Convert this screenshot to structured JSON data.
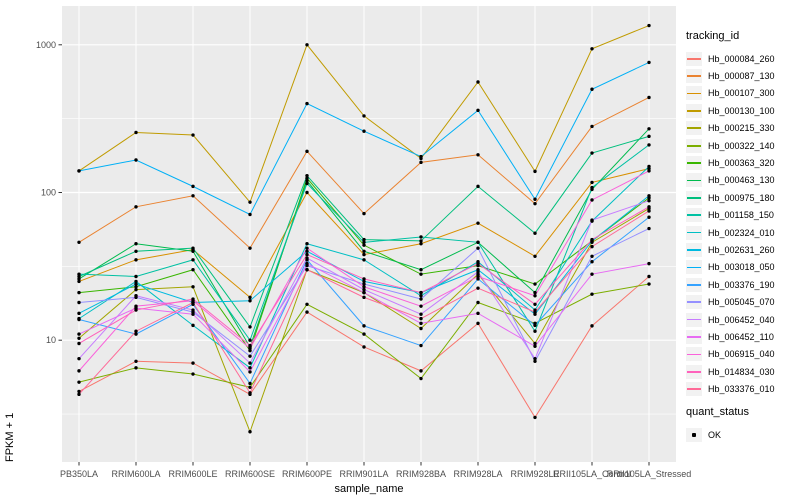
{
  "legend": {
    "tracking_title": "tracking_id",
    "quant_title": "quant_status",
    "quant_items": [
      {
        "label": "OK",
        "marker": "black-point"
      }
    ]
  },
  "colors": {
    "panel_bg": "#EBEBEB",
    "grid": "#FFFFFF",
    "tick": "#333333",
    "tick_label": "#4D4D4D",
    "point": "#000000"
  },
  "chart_data": {
    "type": "line",
    "title": "",
    "xlabel": "sample_name",
    "ylabel": "FPKM + 1",
    "y_scale": "log10",
    "ylim": [
      1.5,
      1800
    ],
    "y_ticks": [
      10,
      100,
      1000
    ],
    "y_tick_labels": [
      "10",
      "100",
      "1000"
    ],
    "y_minor_ticks": [
      3.162,
      31.62,
      316.2
    ],
    "grid": true,
    "legend_position": "right",
    "legend_title": "tracking_id",
    "marker": "black point (quant_status OK)",
    "categories": [
      "PB350LA",
      "RRIM600LA",
      "RRIM600LE",
      "RRIM600SE",
      "RRIM600PE",
      "RRIM901LA",
      "RRIM928BA",
      "RRIM928LA",
      "RRIM928LE",
      "RRII105LA_Control",
      "RRII105LA_Stressed"
    ],
    "series": [
      {
        "name": "Hb_000084_260",
        "color": "#F8766D",
        "values": [
          4.5,
          7.2,
          7.0,
          4.3,
          15.5,
          9.0,
          6.2,
          13,
          3.0,
          12.5,
          27
        ]
      },
      {
        "name": "Hb_000087_130",
        "color": "#EA8331",
        "values": [
          46,
          80,
          95,
          42,
          190,
          72,
          160,
          180,
          84,
          280,
          440
        ]
      },
      {
        "name": "Hb_000107_300",
        "color": "#D89000",
        "values": [
          25,
          35,
          41,
          19.5,
          100,
          38,
          45,
          62,
          37,
          117,
          145
        ]
      },
      {
        "name": "Hb_000130_100",
        "color": "#C09B00",
        "values": [
          140,
          255,
          245,
          86,
          1000,
          330,
          170,
          560,
          139,
          940,
          1350
        ]
      },
      {
        "name": "Hb_000215_330",
        "color": "#A3A500",
        "values": [
          10.3,
          22,
          23,
          2.4,
          30,
          21,
          12,
          28,
          9.5,
          46,
          78
        ]
      },
      {
        "name": "Hb_000322_140",
        "color": "#7CAE00",
        "values": [
          5.2,
          6.5,
          5.9,
          4.8,
          17.5,
          11,
          5.5,
          18,
          13,
          20.5,
          24
        ]
      },
      {
        "name": "Hb_000363_320",
        "color": "#39B600",
        "values": [
          21,
          23,
          30,
          8.5,
          125,
          44,
          28,
          32,
          24,
          47,
          92
        ]
      },
      {
        "name": "Hb_000463_130",
        "color": "#00BB4E",
        "values": [
          26,
          45,
          40,
          9.0,
          120,
          40,
          30,
          46,
          21,
          105,
          270
        ]
      },
      {
        "name": "Hb_000975_180",
        "color": "#00BF7D",
        "values": [
          27,
          40,
          42,
          12.3,
          130,
          48,
          47,
          110,
          53,
          185,
          240
        ]
      },
      {
        "name": "Hb_001158_150",
        "color": "#00C1A3",
        "values": [
          28,
          27,
          35,
          10,
          115,
          46,
          50,
          46,
          11.5,
          108,
          210
        ]
      },
      {
        "name": "Hb_002324_010",
        "color": "#00BFC4",
        "values": [
          14,
          25,
          12.6,
          6.5,
          45,
          35,
          20,
          34,
          16,
          64,
          150
        ]
      },
      {
        "name": "Hb_002631_260",
        "color": "#00BAE0",
        "values": [
          15.2,
          24,
          18,
          18.5,
          40,
          25,
          21,
          30,
          15,
          47,
          95
        ]
      },
      {
        "name": "Hb_003018_050",
        "color": "#00B0F6",
        "values": [
          140,
          166,
          110,
          71,
          400,
          260,
          175,
          360,
          90,
          500,
          760
        ]
      },
      {
        "name": "Hb_003376_190",
        "color": "#35A2FF",
        "values": [
          13.8,
          11,
          17.5,
          5.1,
          35,
          12.5,
          9.2,
          26,
          12.6,
          34,
          68
        ]
      },
      {
        "name": "Hb_005045_070",
        "color": "#9590FF",
        "values": [
          18,
          19.5,
          15.5,
          7.8,
          32,
          24,
          19,
          42,
          7.2,
          37,
          57
        ]
      },
      {
        "name": "Hb_006452_040",
        "color": "#C77CFF",
        "values": [
          7.5,
          20,
          16,
          7.0,
          36,
          22,
          15,
          29,
          7.5,
          65,
          88
        ]
      },
      {
        "name": "Hb_006452_110",
        "color": "#E76BF3",
        "values": [
          11,
          16.5,
          15,
          6.1,
          33,
          21,
          13,
          15.2,
          9.1,
          28,
          33
        ]
      },
      {
        "name": "Hb_006915_040",
        "color": "#FA62DB",
        "values": [
          6.2,
          17,
          18.5,
          8.8,
          42,
          23,
          17,
          27,
          20,
          89,
          140
        ]
      },
      {
        "name": "Hb_014834_030",
        "color": "#FF62BC",
        "values": [
          9.5,
          16,
          19,
          9.2,
          38,
          26,
          21,
          33,
          17.5,
          48,
          80
        ]
      },
      {
        "name": "Hb_033376_010",
        "color": "#FF6A98",
        "values": [
          4.3,
          11.5,
          18,
          4.4,
          30,
          19.5,
          14,
          22.5,
          15.5,
          43,
          75
        ]
      }
    ]
  }
}
